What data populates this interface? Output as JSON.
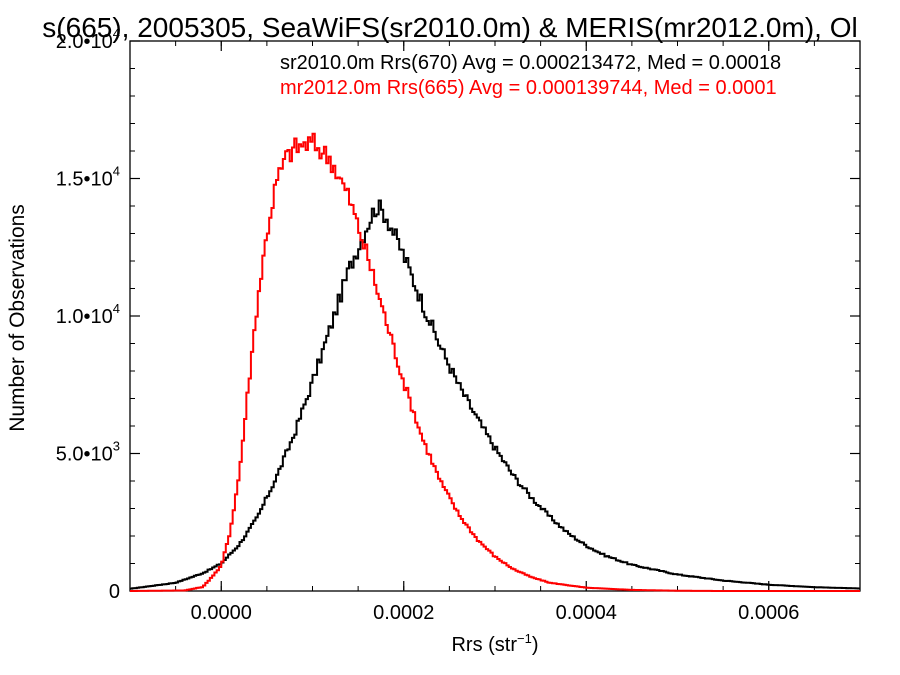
{
  "chart_data": {
    "type": "line",
    "title": "s(665), 2005305, SeaWiFS(sr2010.0m) & MERIS(mr2012.0m), Ol",
    "xlabel_main": "Rrs (str",
    "xlabel_sup": "−1",
    "xlabel_close": ")",
    "ylabel": "Number of Observations",
    "xlim": [
      -0.0001,
      0.0007
    ],
    "ylim": [
      0,
      20000
    ],
    "xticks": [
      {
        "value": 0.0,
        "label": "0.0000"
      },
      {
        "value": 0.0002,
        "label": "0.0002"
      },
      {
        "value": 0.0004,
        "label": "0.0004"
      },
      {
        "value": 0.0006,
        "label": "0.0006"
      }
    ],
    "yticks": [
      {
        "value": 0,
        "mant": "0",
        "exp": ""
      },
      {
        "value": 5000,
        "mant": "5.0•10",
        "exp": "3"
      },
      {
        "value": 10000,
        "mant": "1.0•10",
        "exp": "4"
      },
      {
        "value": 15000,
        "mant": "1.5•10",
        "exp": "4"
      },
      {
        "value": 20000,
        "mant": "2.0•10",
        "exp": "4"
      }
    ],
    "series": [
      {
        "color": "#000000",
        "label": "sr2010.0m Rrs(670) Avg = 0.000213472, Med = 0.00018",
        "bin_width": 2.5e-06,
        "peak_y": 14000,
        "points": [
          [
            -0.0001,
            80
          ],
          [
            -5e-05,
            300
          ],
          [
            -2e-05,
            650
          ],
          [
            0.0,
            1000
          ],
          [
            2e-05,
            1700
          ],
          [
            4e-05,
            2700
          ],
          [
            6e-05,
            4100
          ],
          [
            8e-05,
            5700
          ],
          [
            0.0001,
            7600
          ],
          [
            0.00012,
            9600
          ],
          [
            0.00014,
            11700
          ],
          [
            0.00016,
            13300
          ],
          [
            0.00017,
            14000
          ],
          [
            0.00018,
            13700
          ],
          [
            0.0002,
            12200
          ],
          [
            0.00022,
            10500
          ],
          [
            0.00024,
            8900
          ],
          [
            0.00026,
            7500
          ],
          [
            0.00028,
            6300
          ],
          [
            0.0003,
            5200
          ],
          [
            0.00032,
            4200
          ],
          [
            0.00034,
            3400
          ],
          [
            0.00036,
            2700
          ],
          [
            0.00038,
            2100
          ],
          [
            0.0004,
            1650
          ],
          [
            0.00042,
            1300
          ],
          [
            0.00045,
            950
          ],
          [
            0.0005,
            600
          ],
          [
            0.00055,
            380
          ],
          [
            0.0006,
            230
          ],
          [
            0.00065,
            140
          ],
          [
            0.0007,
            90
          ]
        ]
      },
      {
        "color": "#ff0000",
        "label": "mr2012.0m Rrs(665) Avg = 0.000139744, Med = 0.0001",
        "bin_width": 2.5e-06,
        "peak_y": 16300,
        "points": [
          [
            -0.0001,
            0
          ],
          [
            -4e-05,
            20
          ],
          [
            -2e-05,
            150
          ],
          [
            0.0,
            900
          ],
          [
            1e-05,
            2200
          ],
          [
            2e-05,
            4300
          ],
          [
            3e-05,
            7500
          ],
          [
            4e-05,
            10600
          ],
          [
            5e-05,
            13000
          ],
          [
            6e-05,
            14800
          ],
          [
            7e-05,
            15700
          ],
          [
            8e-05,
            16100
          ],
          [
            0.0001,
            16300
          ],
          [
            0.00012,
            15700
          ],
          [
            0.00014,
            14300
          ],
          [
            0.00016,
            12200
          ],
          [
            0.00018,
            9900
          ],
          [
            0.0002,
            7600
          ],
          [
            0.00022,
            5600
          ],
          [
            0.00024,
            4000
          ],
          [
            0.00026,
            2800
          ],
          [
            0.00028,
            1900
          ],
          [
            0.0003,
            1250
          ],
          [
            0.00032,
            800
          ],
          [
            0.00034,
            500
          ],
          [
            0.00036,
            300
          ],
          [
            0.0004,
            120
          ],
          [
            0.00045,
            40
          ],
          [
            0.0005,
            10
          ],
          [
            0.00055,
            0
          ],
          [
            0.0007,
            0
          ]
        ]
      }
    ]
  }
}
